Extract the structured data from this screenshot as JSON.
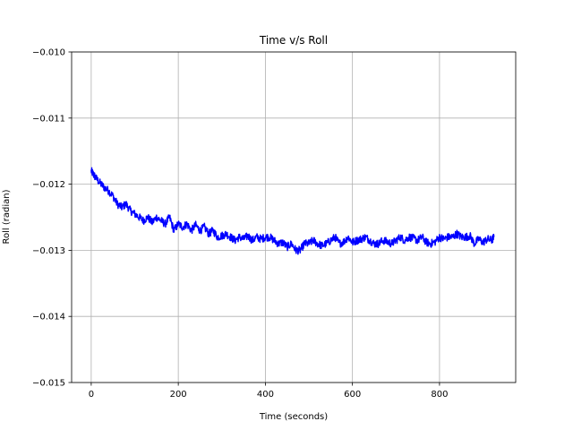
{
  "chart_data": {
    "type": "line",
    "title": "Time v/s Roll",
    "xlabel": "Time (seconds)",
    "ylabel": "Roll (radian)",
    "xlim": [
      -45,
      975
    ],
    "ylim": [
      -0.015,
      -0.01
    ],
    "grid": true,
    "x_ticks": [
      0,
      200,
      400,
      600,
      800
    ],
    "x_tick_labels": [
      "0",
      "200",
      "400",
      "600",
      "800"
    ],
    "y_ticks": [
      -0.015,
      -0.014,
      -0.013,
      -0.012,
      -0.011,
      -0.01
    ],
    "y_tick_labels": [
      "−0.015",
      "−0.014",
      "−0.013",
      "−0.012",
      "−0.011",
      "−0.010"
    ],
    "series": [
      {
        "color": "#0000ff",
        "x": [
          0,
          5,
          10,
          20,
          30,
          40,
          50,
          60,
          70,
          80,
          90,
          100,
          110,
          120,
          130,
          140,
          150,
          160,
          170,
          180,
          190,
          200,
          210,
          220,
          230,
          240,
          250,
          260,
          270,
          280,
          290,
          300,
          310,
          320,
          330,
          340,
          350,
          360,
          370,
          380,
          390,
          400,
          410,
          420,
          430,
          440,
          450,
          460,
          470,
          480,
          490,
          500,
          510,
          520,
          530,
          540,
          550,
          560,
          570,
          580,
          590,
          600,
          610,
          620,
          630,
          640,
          650,
          660,
          670,
          680,
          690,
          700,
          710,
          720,
          730,
          740,
          750,
          760,
          770,
          780,
          790,
          800,
          810,
          820,
          830,
          840,
          850,
          860,
          870,
          880,
          890,
          900,
          910,
          920,
          925
        ],
        "y": [
          -0.0118,
          -0.01185,
          -0.0119,
          -0.01198,
          -0.01205,
          -0.0121,
          -0.01218,
          -0.0123,
          -0.01235,
          -0.0123,
          -0.0124,
          -0.01245,
          -0.0125,
          -0.01255,
          -0.0125,
          -0.01258,
          -0.0125,
          -0.01255,
          -0.0126,
          -0.0125,
          -0.0127,
          -0.0126,
          -0.01265,
          -0.0126,
          -0.0127,
          -0.01262,
          -0.0127,
          -0.01265,
          -0.01275,
          -0.0127,
          -0.0128,
          -0.01278,
          -0.01275,
          -0.0128,
          -0.01285,
          -0.0128,
          -0.01283,
          -0.01278,
          -0.01285,
          -0.0128,
          -0.01283,
          -0.0128,
          -0.0128,
          -0.01285,
          -0.0129,
          -0.01288,
          -0.01295,
          -0.0129,
          -0.013,
          -0.013,
          -0.0129,
          -0.0129,
          -0.01285,
          -0.0129,
          -0.01293,
          -0.0129,
          -0.01285,
          -0.0128,
          -0.0129,
          -0.01287,
          -0.0128,
          -0.01288,
          -0.01285,
          -0.01283,
          -0.0128,
          -0.01285,
          -0.0129,
          -0.0129,
          -0.01285,
          -0.01287,
          -0.0129,
          -0.01285,
          -0.0128,
          -0.01285,
          -0.0128,
          -0.01282,
          -0.01285,
          -0.0128,
          -0.01288,
          -0.0129,
          -0.01287,
          -0.0128,
          -0.01283,
          -0.0128,
          -0.0128,
          -0.01275,
          -0.0128,
          -0.0128,
          -0.01278,
          -0.0129,
          -0.01283,
          -0.01288,
          -0.01283,
          -0.01285,
          -0.0128
        ]
      }
    ]
  }
}
